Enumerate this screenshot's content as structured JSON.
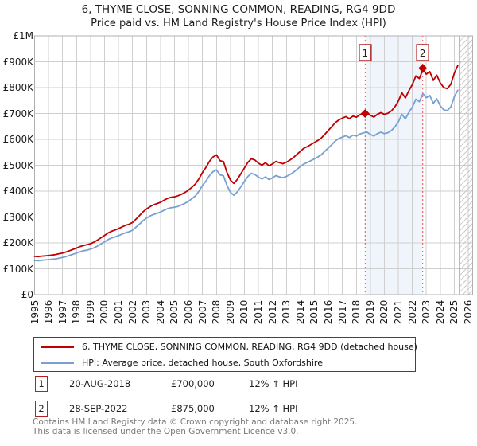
{
  "title": "6, THYME CLOSE, SONNING COMMON, READING, RG4 9DD",
  "subtitle": "Price paid vs. HM Land Registry's House Price Index (HPI)",
  "colors": {
    "property_line": "#c00000",
    "hpi_line": "#78a0d2",
    "sale_vline": "#e86a6a",
    "sale_flag_border": "#b22222",
    "gridline": "#cfcfcf",
    "plot_border": "#b0b0b0",
    "between_sales_band": "#f0f5fc",
    "hatch_line": "#c8c8c8",
    "hatch_edge": "#909090"
  },
  "chart_data": {
    "type": "line",
    "x_axis": {
      "range": [
        1995,
        2026.31
      ],
      "tick_labels": [
        "1995",
        "1996",
        "1997",
        "1998",
        "1999",
        "2000",
        "2001",
        "2002",
        "2003",
        "2004",
        "2005",
        "2006",
        "2007",
        "2008",
        "2009",
        "2010",
        "2011",
        "2012",
        "2013",
        "2014",
        "2015",
        "2016",
        "2017",
        "2018",
        "2019",
        "2020",
        "2021",
        "2022",
        "2023",
        "2024",
        "2025",
        "2026"
      ]
    },
    "y_axis": {
      "range": [
        0,
        1000
      ],
      "unit": "GBP thousands",
      "tick_values": [
        0,
        100,
        200,
        300,
        400,
        500,
        600,
        700,
        800,
        900,
        1000
      ],
      "tick_labels": [
        "£0",
        "£100K",
        "£200K",
        "£300K",
        "£400K",
        "£500K",
        "£600K",
        "£700K",
        "£800K",
        "£900K",
        "£1M"
      ]
    },
    "x_start": 1995.0,
    "x_step_years": 0.25,
    "series": [
      {
        "name": "6, THYME CLOSE, SONNING COMMON, READING, RG4 9DD (detached house)",
        "color": "#c00000",
        "values": [
          148,
          147,
          149,
          150,
          151,
          153,
          155,
          158,
          161,
          165,
          170,
          175,
          180,
          186,
          190,
          193,
          197,
          203,
          211,
          220,
          229,
          238,
          245,
          250,
          255,
          262,
          268,
          272,
          279,
          292,
          306,
          320,
          331,
          340,
          347,
          352,
          357,
          365,
          372,
          376,
          378,
          382,
          388,
          395,
          404,
          415,
          428,
          448,
          472,
          492,
          515,
          532,
          540,
          518,
          514,
          472,
          442,
          430,
          446,
          468,
          490,
          512,
          525,
          520,
          508,
          500,
          510,
          498,
          505,
          515,
          510,
          506,
          512,
          520,
          530,
          542,
          554,
          566,
          572,
          580,
          588,
          596,
          606,
          620,
          635,
          650,
          665,
          675,
          682,
          688,
          680,
          690,
          686,
          695,
          700,
          703,
          693,
          686,
          697,
          703,
          697,
          701,
          710,
          726,
          748,
          780,
          760,
          788,
          812,
          845,
          835,
          870,
          852,
          862,
          828,
          848,
          818,
          800,
          796,
          812,
          855,
          885
        ]
      },
      {
        "name": "HPI: Average price, detached house, South Oxfordshire",
        "color": "#78a0d2",
        "values": [
          132,
          131,
          133,
          134,
          135,
          137,
          138,
          141,
          144,
          147,
          152,
          156,
          161,
          166,
          170,
          172,
          176,
          181,
          188,
          196,
          204,
          213,
          219,
          223,
          228,
          234,
          239,
          243,
          249,
          261,
          273,
          286,
          296,
          304,
          310,
          314,
          319,
          326,
          332,
          336,
          338,
          341,
          347,
          353,
          361,
          371,
          382,
          400,
          422,
          439,
          460,
          475,
          482,
          463,
          459,
          422,
          395,
          384,
          398,
          418,
          438,
          457,
          469,
          464,
          454,
          447,
          455,
          445,
          451,
          460,
          455,
          452,
          457,
          464,
          473,
          484,
          495,
          505,
          511,
          518,
          525,
          532,
          541,
          554,
          567,
          580,
          594,
          603,
          609,
          614,
          607,
          616,
          613,
          621,
          625,
          628,
          619,
          613,
          622,
          628,
          622,
          626,
          634,
          648,
          668,
          697,
          679,
          704,
          725,
          755,
          746,
          777,
          761,
          770,
          739,
          757,
          730,
          714,
          711,
          725,
          764,
          790
        ]
      }
    ],
    "sale_markers": [
      {
        "label": "1",
        "x_year": 2018.63,
        "value": 700,
        "date": "20-AUG-2018"
      },
      {
        "label": "2",
        "x_year": 2022.74,
        "value": 875,
        "date": "28-SEP-2022"
      }
    ],
    "shaded_band_x": [
      2018.63,
      2022.74
    ],
    "no_data_hatch_from_x": 2025.38,
    "grid": true,
    "legend_position": "bottom"
  },
  "legend": {
    "items": [
      {
        "label": "6, THYME CLOSE, SONNING COMMON, READING, RG4 9DD (detached house)",
        "color": "#c00000"
      },
      {
        "label": "HPI: Average price, detached house, South Oxfordshire",
        "color": "#78a0d2"
      }
    ]
  },
  "annotations": [
    {
      "num": "1",
      "date": "20-AUG-2018",
      "price": "£700,000",
      "hpi_delta": "12% ↑ HPI"
    },
    {
      "num": "2",
      "date": "28-SEP-2022",
      "price": "£875,000",
      "hpi_delta": "12% ↑ HPI"
    }
  ],
  "footer": {
    "line1": "Contains HM Land Registry data © Crown copyright and database right 2025.",
    "line2": "This data is licensed under the Open Government Licence v3.0."
  }
}
